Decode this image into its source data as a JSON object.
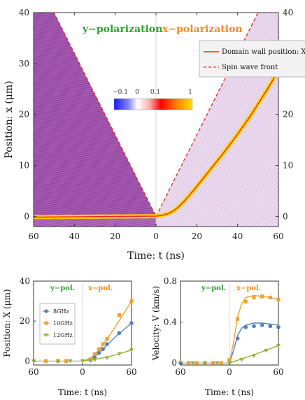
{
  "chart_data": [
    {
      "type": "heatmap",
      "title": "",
      "xlabel": "Time: t (ns)",
      "ylabel": "Position: x (μm)",
      "x_ticks": [
        "60",
        "40",
        "20",
        "0",
        "20",
        "40",
        "60"
      ],
      "y_ticks": [
        "0",
        "10",
        "20",
        "30",
        "40"
      ],
      "xlim": [
        -60,
        60
      ],
      "ylim": [
        -2,
        40
      ],
      "annotations": {
        "left": "y−polarization",
        "right": "x−polarization"
      },
      "legend": {
        "placement": "top-right",
        "entries": [
          "Domain wall position: X(t)",
          "Spin wave front"
        ]
      },
      "colorbar": {
        "ticks": [
          "−0.1",
          "0",
          "0.1",
          "1"
        ]
      },
      "series": [
        {
          "name": "Domain wall position: X(t)",
          "x": [
            0,
            3,
            6,
            9,
            12,
            15,
            18,
            21,
            24,
            27,
            30,
            33,
            36,
            39,
            42,
            45,
            48,
            51,
            54,
            57,
            60
          ],
          "y": [
            0.05,
            0.2,
            0.55,
            1.2,
            2.2,
            3.5,
            4.9,
            6.4,
            7.9,
            9.4,
            10.9,
            12.4,
            14.0,
            15.6,
            17.3,
            19.0,
            20.8,
            22.7,
            24.6,
            26.6,
            28.6
          ]
        },
        {
          "name": "Spin wave front (y-pol.)",
          "x": [
            -60,
            0
          ],
          "y": [
            48,
            0
          ]
        },
        {
          "name": "Spin wave front (x-pol.)",
          "x": [
            0,
            60
          ],
          "y": [
            0,
            48
          ]
        }
      ]
    },
    {
      "type": "scatter",
      "xlabel": "Time: t (ns)",
      "ylabel": "Position: X (μm)",
      "x_ticks": [
        "60",
        "0",
        "60"
      ],
      "y_ticks": [
        "0",
        "20",
        "40"
      ],
      "xlim": [
        -60,
        60
      ],
      "ylim": [
        -2,
        40
      ],
      "annotations": {
        "left": "y−pol.",
        "right": "x−pol."
      },
      "legend": {
        "placement": "top-left",
        "entries": [
          "8GHz",
          "10GHz",
          "12GHz"
        ]
      },
      "series": [
        {
          "name": "8GHz",
          "color": "#4f7fbf",
          "marker": "circle",
          "x": [
            -30,
            -20,
            10,
            15,
            20,
            25,
            30,
            45,
            60
          ],
          "y": [
            0,
            0,
            0.5,
            2,
            4,
            6,
            8.5,
            14,
            19
          ],
          "fit_x": [
            0,
            10,
            20,
            30,
            40,
            50,
            60
          ],
          "fit_y": [
            0,
            1,
            4,
            8,
            12,
            15.5,
            19
          ]
        },
        {
          "name": "10GHz",
          "color": "#f0a030",
          "marker": "square",
          "x": [
            -45,
            -30,
            -20,
            10,
            15,
            20,
            25,
            30,
            45,
            60
          ],
          "y": [
            0,
            0,
            0,
            1,
            3.5,
            6,
            8.5,
            11,
            23,
            30
          ],
          "fit_x": [
            0,
            10,
            20,
            30,
            40,
            50,
            60
          ],
          "fit_y": [
            0,
            1.5,
            5.5,
            11,
            17,
            23.5,
            30
          ]
        },
        {
          "name": "12GHz",
          "color": "#8ab330",
          "marker": "triangle",
          "x": [
            -60,
            -30,
            -15,
            0,
            15,
            30,
            45,
            60
          ],
          "y": [
            0,
            0,
            0,
            0,
            0.5,
            1.5,
            3.5,
            5.5
          ],
          "fit_x": [
            0,
            15,
            30,
            45,
            60
          ],
          "fit_y": [
            0,
            0.8,
            2,
            3.6,
            5.5
          ]
        }
      ]
    },
    {
      "type": "scatter",
      "xlabel": "Time: t (ns)",
      "ylabel": "Velocity: V (km/s)",
      "x_ticks": [
        "60",
        "0",
        "60"
      ],
      "y_ticks": [
        "0",
        "0.4",
        "0.8"
      ],
      "xlim": [
        -60,
        60
      ],
      "ylim": [
        -0.02,
        0.8
      ],
      "annotations": {
        "left": "y−pol.",
        "right": "x−pol."
      },
      "series": [
        {
          "name": "8GHz",
          "color": "#4f7fbf",
          "marker": "circle",
          "x": [
            -60,
            -50,
            -40,
            -30,
            -20,
            -10,
            0,
            10,
            20,
            30,
            40,
            50,
            60
          ],
          "y": [
            0,
            0,
            0,
            0,
            0,
            0,
            0.02,
            0.24,
            0.35,
            0.36,
            0.37,
            0.36,
            0.35
          ],
          "fit_x": [
            0,
            5,
            10,
            15,
            20,
            30,
            40,
            50,
            60
          ],
          "fit_y": [
            0,
            0.12,
            0.27,
            0.34,
            0.37,
            0.39,
            0.39,
            0.38,
            0.37
          ]
        },
        {
          "name": "10GHz",
          "color": "#f0a030",
          "marker": "square",
          "x": [
            -50,
            -40,
            -30,
            -20,
            -10,
            0,
            10,
            20,
            30,
            40,
            50,
            60
          ],
          "y": [
            0,
            0,
            0,
            0,
            0,
            0.03,
            0.43,
            0.6,
            0.64,
            0.65,
            0.64,
            0.62
          ],
          "fit_x": [
            0,
            5,
            10,
            15,
            20,
            30,
            40,
            50,
            60
          ],
          "fit_y": [
            0,
            0.2,
            0.45,
            0.58,
            0.64,
            0.66,
            0.65,
            0.64,
            0.62
          ]
        },
        {
          "name": "12GHz",
          "color": "#8ab330",
          "marker": "triangle",
          "x": [
            -60,
            -45,
            -30,
            -15,
            0,
            15,
            30,
            45,
            60
          ],
          "y": [
            0,
            0,
            0,
            0,
            0,
            0.03,
            0.07,
            0.12,
            0.17
          ],
          "fit_x": [
            0,
            15,
            30,
            45,
            60
          ],
          "fit_y": [
            0,
            0.04,
            0.08,
            0.125,
            0.17
          ]
        }
      ]
    }
  ]
}
